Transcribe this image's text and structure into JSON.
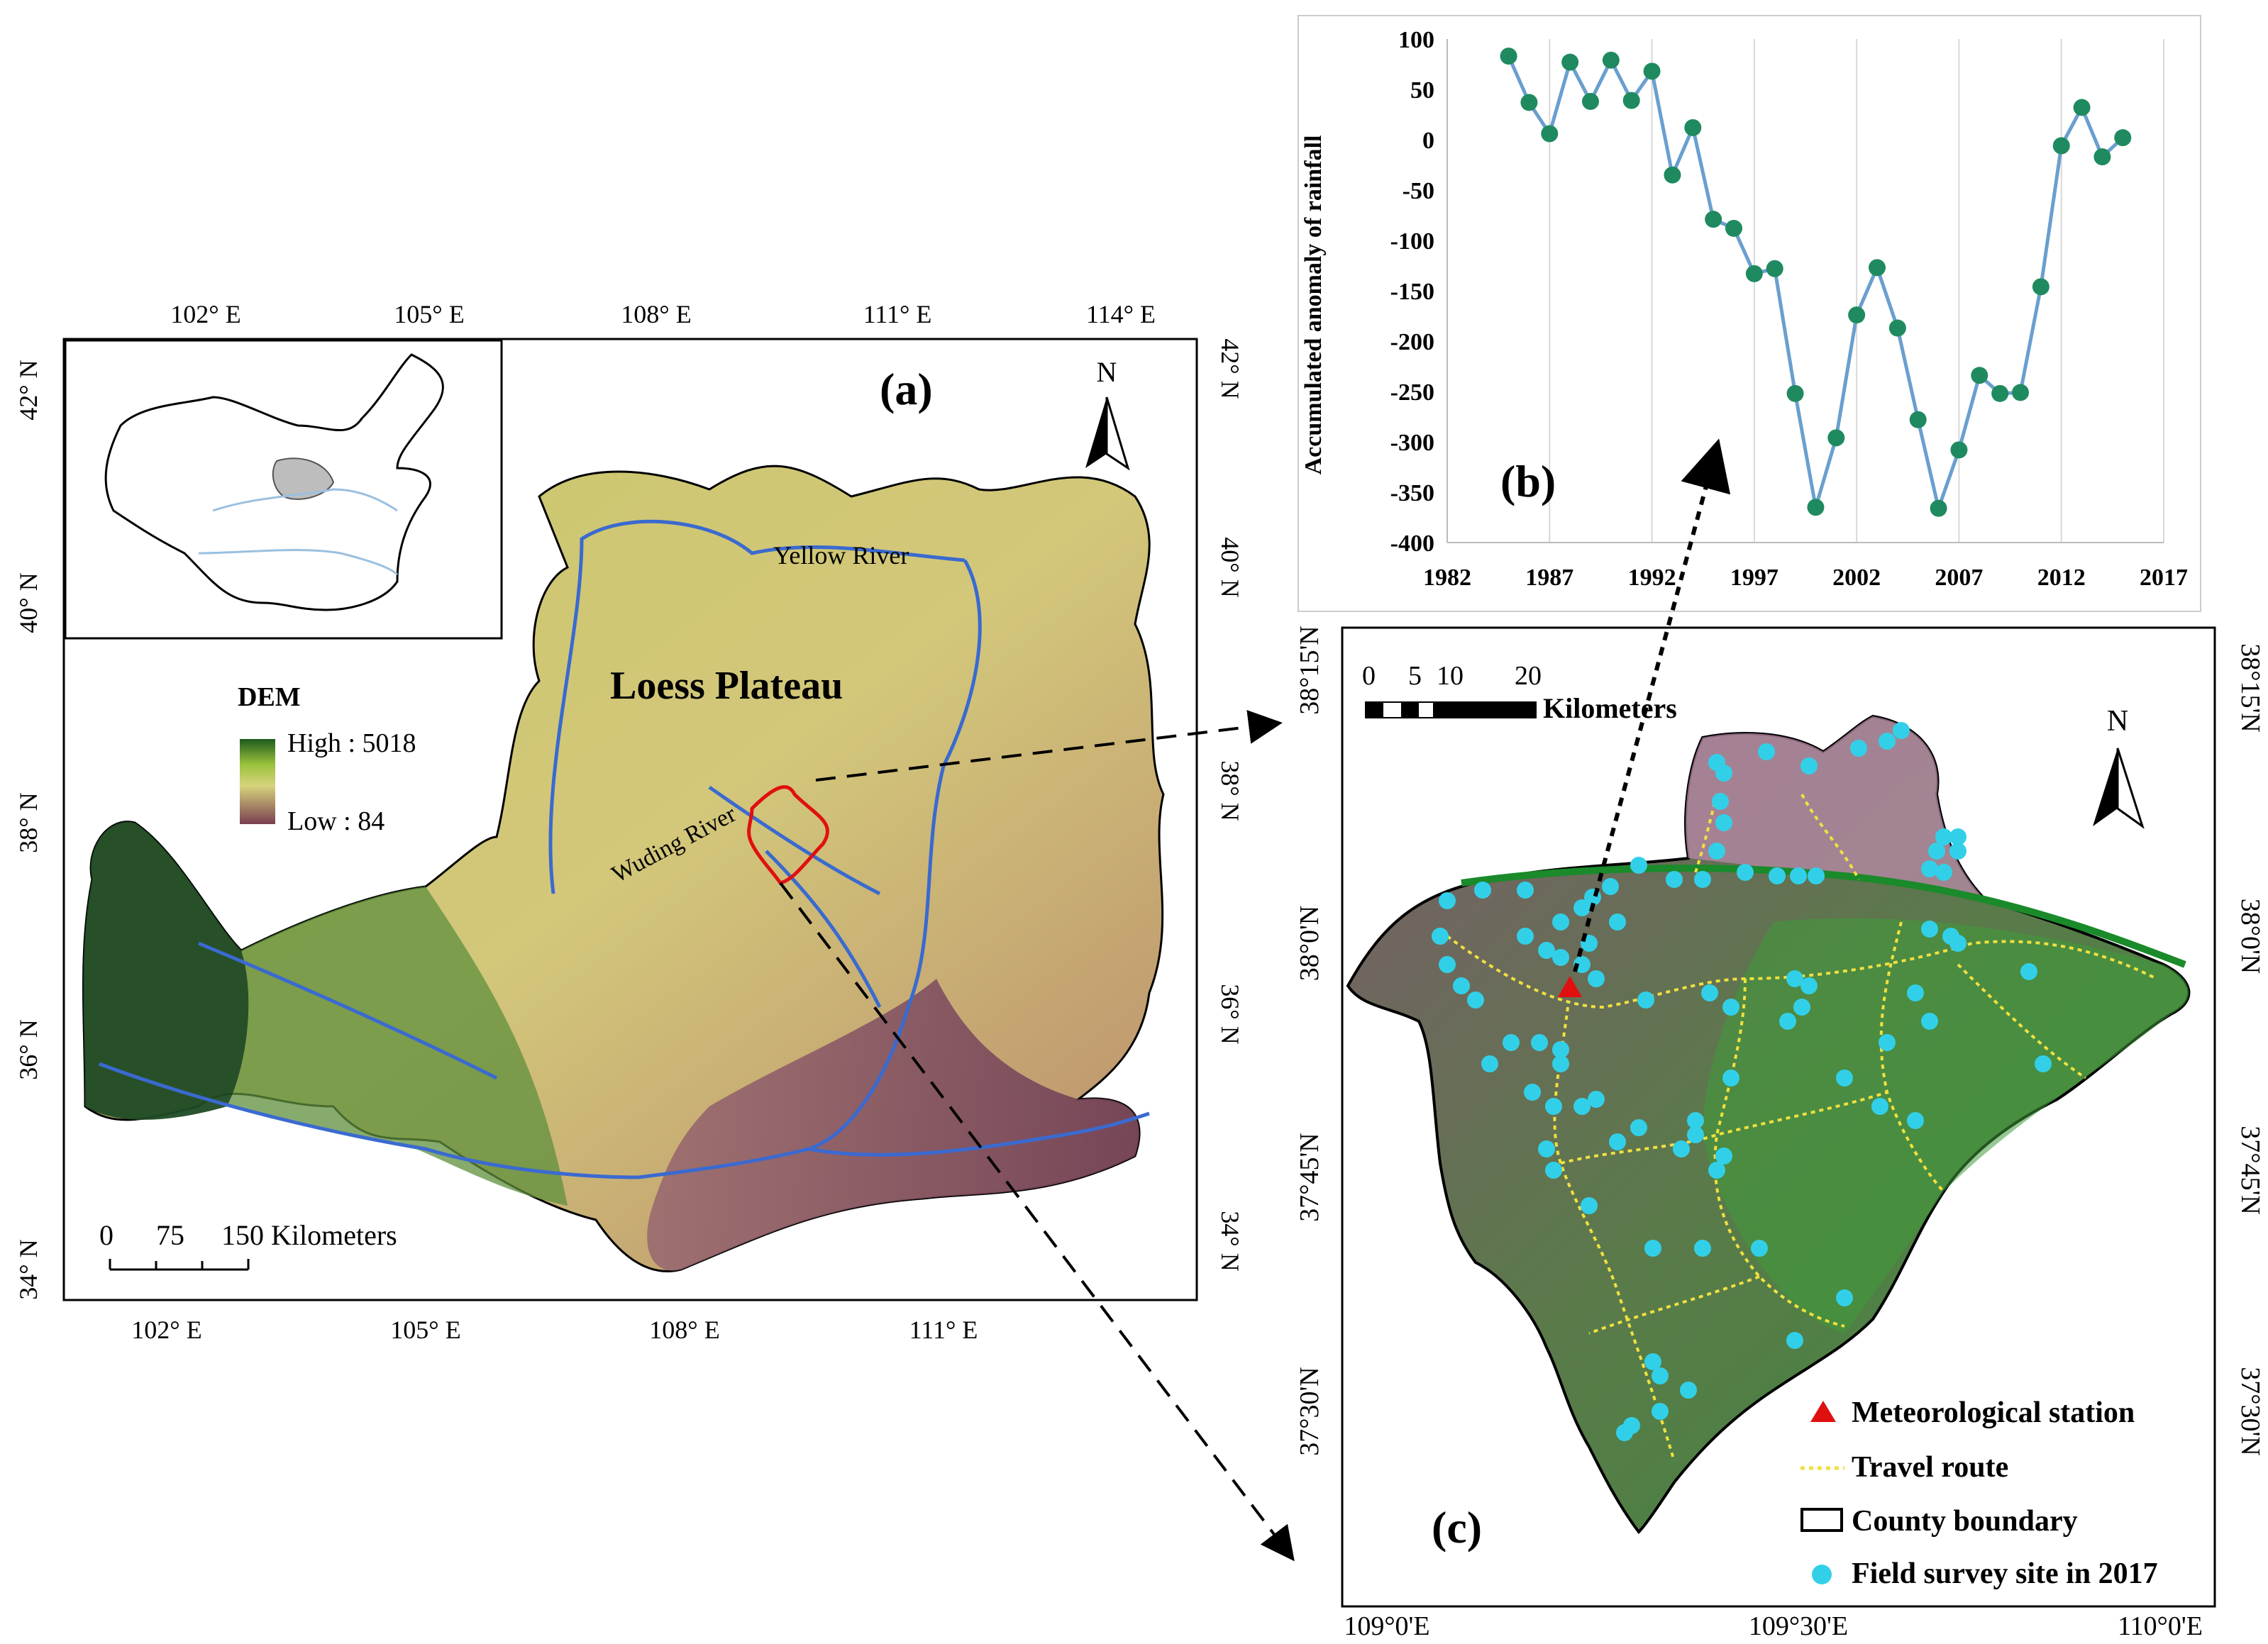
{
  "panel_a": {
    "label": "(a)",
    "north": "N",
    "top_lon": [
      "102° E",
      "105° E",
      "108° E",
      "111° E",
      "114° E"
    ],
    "bottom_lon": [
      "102° E",
      "105° E",
      "108° E",
      "111° E"
    ],
    "left_lat": [
      "42° N",
      "40° N",
      "38° N",
      "36° N",
      "34° N"
    ],
    "right_lat": [
      "42° N",
      "40° N",
      "38° N",
      "36° N",
      "34° N"
    ],
    "region": "Loess Plateau",
    "river_yellow": "Yellow River",
    "river_wuding": "Wuding River",
    "legend_title": "DEM",
    "legend_high": "High : 5018",
    "legend_low": "Low : 84",
    "scale": {
      "ticks": [
        "0",
        "75",
        "150 Kilometers"
      ]
    }
  },
  "panel_b": {
    "label": "(b)",
    "ylabel": "Accumulated anomaly of rainfall",
    "chart_data": {
      "type": "line",
      "x": [
        1985,
        1986,
        1987,
        1988,
        1989,
        1990,
        1991,
        1992,
        1993,
        1994,
        1995,
        1996,
        1997,
        1998,
        1999,
        2000,
        2001,
        2002,
        2003,
        2004,
        2005,
        2006,
        2007,
        2008,
        2009,
        2010,
        2011,
        2012,
        2013,
        2014,
        2015
      ],
      "y": [
        83,
        37,
        6,
        77,
        38,
        79,
        39,
        68,
        -35,
        12,
        -79,
        -88,
        -133,
        -128,
        -252,
        -365,
        -296,
        -174,
        -127,
        -187,
        -278,
        -366,
        -308,
        -234,
        -252,
        -251,
        -146,
        -6,
        32,
        -17,
        2
      ],
      "xticks": [
        "1982",
        "1987",
        "1992",
        "1997",
        "2002",
        "2007",
        "2012",
        "2017"
      ],
      "yticks": [
        "100",
        "50",
        "0",
        "-50",
        "-100",
        "-150",
        "-200",
        "-250",
        "-300",
        "-350",
        "-400"
      ],
      "xlim": [
        1982,
        2017
      ],
      "ylim": [
        -400,
        100
      ],
      "grid": "vertical"
    }
  },
  "panel_c": {
    "label": "(c)",
    "north": "N",
    "scale_ticks": [
      "0",
      "5",
      "10",
      "20"
    ],
    "scale_unit": "Kilometers",
    "left_lat": [
      "38°15'N",
      "38°0'N",
      "37°45'N",
      "37°30'N"
    ],
    "right_lat": [
      "38°15'N",
      "38°0'N",
      "37°45'N",
      "37°30'N"
    ],
    "bottom_lon": [
      "109°0'E",
      "109°30'E",
      "110°0'E"
    ],
    "legend": [
      {
        "label": "Meteorological station",
        "icon": "red-triangle"
      },
      {
        "label": "Travel route",
        "icon": "yellow-dotted-line"
      },
      {
        "label": "County boundary",
        "icon": "black-rectangle"
      },
      {
        "label": "Field survey site in 2017",
        "icon": "cyan-circle"
      }
    ]
  },
  "colors": {
    "line": "#6a9fcf",
    "marker": "#1f8a5f",
    "station": "#e01010",
    "site": "#32d0e8",
    "route": "#f0e040"
  }
}
